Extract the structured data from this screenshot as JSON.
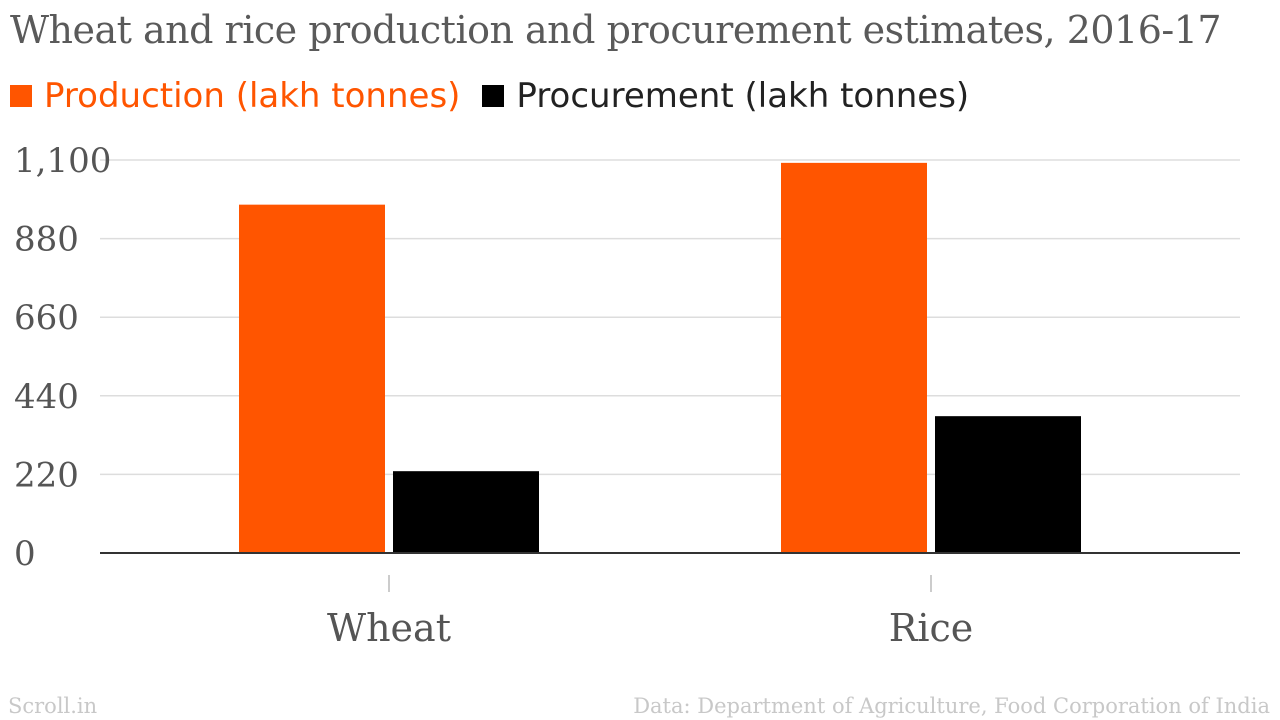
{
  "chart_data": {
    "type": "bar",
    "title": "Wheat and rice production and procurement estimates, 2016-17",
    "categories": [
      "Wheat",
      "Rice"
    ],
    "series": [
      {
        "name": "Production (lakh tonnes)",
        "values": [
          975,
          1092
        ],
        "color": "#ff5500"
      },
      {
        "name": "Procurement (lakh tonnes)",
        "values": [
          229,
          383
        ],
        "color": "#000000"
      }
    ],
    "yticks": [
      0,
      220,
      440,
      660,
      880,
      1100
    ],
    "ytick_labels": [
      "0",
      "220",
      "440",
      "660",
      "880",
      "1,100"
    ],
    "ylim": [
      0,
      1100
    ],
    "grid": true,
    "legend_position": "top-left"
  },
  "footer": {
    "brand": "Scroll.in",
    "source": "Data: Department of Agriculture, Food Corporation of India"
  }
}
